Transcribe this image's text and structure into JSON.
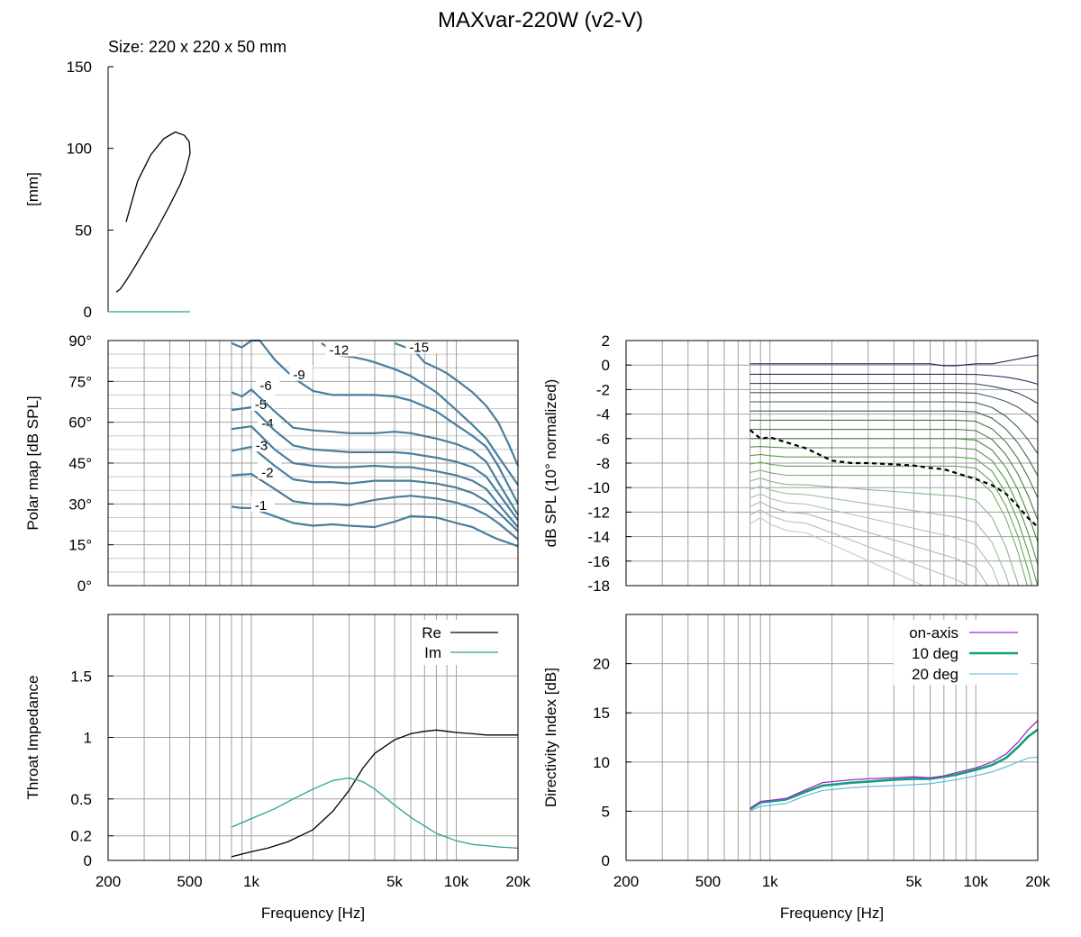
{
  "title": "MAXvar-220W (v2-V)",
  "chart_data": [
    {
      "id": "profile",
      "type": "line",
      "title": "Size: 220 x 220 x 50 mm",
      "xlabel": "",
      "ylabel": "[mm]",
      "xlim": [
        0,
        220
      ],
      "ylim": [
        0,
        150
      ],
      "yticks": [
        0,
        50,
        100,
        150
      ],
      "colors": {
        "profile": "#000000",
        "baseline": "#2aa198"
      },
      "series": [
        {
          "name": "profile",
          "x": [
            10,
            15,
            22,
            32,
            45,
            60,
            75,
            88,
            95,
            100,
            99,
            93,
            82,
            68,
            52,
            36,
            22
          ],
          "y": [
            12,
            14,
            19,
            27,
            38,
            51,
            65,
            78,
            87,
            97,
            104,
            108,
            110,
            106,
            96,
            80,
            55
          ]
        },
        {
          "name": "baseline",
          "x": [
            0,
            100
          ],
          "y": [
            0,
            0
          ]
        }
      ]
    },
    {
      "id": "polar-map",
      "type": "line",
      "title": "",
      "xlabel": "",
      "ylabel": "Polar map [dB SPL]",
      "xscale": "log",
      "xlim": [
        200,
        20000
      ],
      "ylim": [
        0,
        90
      ],
      "yticks": [
        0,
        15,
        30,
        45,
        60,
        75,
        90
      ],
      "ytick_labels": [
        "0°",
        "15°",
        "30°",
        "45°",
        "60°",
        "75°",
        "90°"
      ],
      "color": "#4a7d9c",
      "series": [
        {
          "name": "-1",
          "label_x": 1040,
          "label_y": 29.5,
          "x": [
            800,
            900,
            1000,
            1300,
            1600,
            2000,
            2500,
            3000,
            4000,
            5000,
            6000,
            8000,
            10000,
            12000,
            14000,
            16000,
            20000
          ],
          "y": [
            29,
            28.5,
            28.5,
            25.5,
            23,
            22,
            22.5,
            22,
            21.5,
            23.5,
            25.5,
            25,
            23,
            21.5,
            19,
            17,
            14.5
          ]
        },
        {
          "name": "-2",
          "label_x": 1120,
          "label_y": 41.5,
          "x": [
            800,
            1000,
            1300,
            1600,
            2000,
            2500,
            3000,
            4000,
            5000,
            6000,
            8000,
            10000,
            12000,
            14000,
            16000,
            20000
          ],
          "y": [
            40.5,
            41,
            35.5,
            31,
            30,
            30,
            29.5,
            31.5,
            32.5,
            33,
            32,
            30.5,
            28.5,
            26,
            23,
            17
          ]
        },
        {
          "name": "-3",
          "label_x": 1050,
          "label_y": 51.5,
          "x": [
            800,
            1000,
            1300,
            1600,
            2000,
            2500,
            3000,
            4000,
            5000,
            6000,
            8000,
            10000,
            12000,
            14000,
            16000,
            20000
          ],
          "y": [
            49.5,
            51,
            44,
            39,
            38,
            38,
            37.5,
            38.5,
            38.5,
            38.5,
            37.5,
            36,
            34,
            31,
            27,
            20
          ]
        },
        {
          "name": "-4",
          "label_x": 1120,
          "label_y": 59.5,
          "x": [
            800,
            1000,
            1300,
            1600,
            2000,
            2500,
            3000,
            4000,
            5000,
            6000,
            8000,
            10000,
            12000,
            14000,
            16000,
            20000
          ],
          "y": [
            57.5,
            58.5,
            50,
            45,
            44,
            43.5,
            43.5,
            44,
            43.5,
            43.5,
            42,
            40.5,
            38.5,
            35.5,
            30,
            21.5
          ]
        },
        {
          "name": "-5",
          "label_x": 1040,
          "label_y": 66.5,
          "x": [
            800,
            1000,
            1300,
            1600,
            2000,
            2500,
            3000,
            4000,
            5000,
            6000,
            8000,
            10000,
            12000,
            14000,
            16000,
            20000
          ],
          "y": [
            64.5,
            65.5,
            57,
            51.5,
            50,
            49.5,
            49,
            49,
            49,
            48.5,
            47,
            45.5,
            43.5,
            40,
            34,
            24
          ]
        },
        {
          "name": "-6",
          "label_x": 1100,
          "label_y": 73.5,
          "x": [
            800,
            900,
            1000,
            1300,
            1600,
            2000,
            2500,
            3000,
            4000,
            5000,
            6000,
            8000,
            10000,
            12000,
            14000,
            16000,
            20000
          ],
          "y": [
            71,
            69.5,
            72,
            64,
            58,
            57,
            56.5,
            56,
            56,
            56.5,
            56,
            54,
            52,
            49.5,
            45.5,
            38,
            26
          ]
        },
        {
          "name": "-9",
          "label_x": 1600,
          "label_y": 77.5,
          "x": [
            800,
            900,
            1000,
            1100,
            1300,
            1500,
            1700,
            2000,
            2500,
            3000,
            4000,
            5000,
            6000,
            8000,
            10000,
            12000,
            14000,
            16000,
            20000
          ],
          "y": [
            89,
            87.5,
            90,
            90,
            83,
            78.5,
            75,
            71.5,
            70,
            70,
            70,
            69.5,
            68,
            64,
            59,
            55,
            51,
            44,
            30
          ]
        },
        {
          "name": "-12",
          "label_x": 2400,
          "label_y": 86.5,
          "x": [
            2200,
            2700,
            3100,
            3600,
            4000,
            5000,
            6000,
            8000,
            10000,
            12000,
            14000,
            16000,
            18000,
            20000
          ],
          "y": [
            89,
            84.5,
            84,
            83,
            82,
            79.5,
            77,
            71,
            64.5,
            59,
            54,
            47.5,
            42,
            37
          ]
        },
        {
          "name": "-15",
          "label_x": 5900,
          "label_y": 87.5,
          "x": [
            5000,
            6200,
            7000,
            8000,
            9000,
            10000,
            12000,
            14000,
            16000,
            18000,
            20000
          ],
          "y": [
            89,
            86.5,
            82,
            80,
            78,
            75.5,
            71,
            66,
            60,
            52,
            44
          ]
        }
      ]
    },
    {
      "id": "normalized-spl",
      "type": "line",
      "title": "",
      "xlabel": "",
      "ylabel": "dB SPL (10° normalized)",
      "xscale": "log",
      "xlim": [
        200,
        20000
      ],
      "ylim": [
        -18,
        2
      ],
      "yticks": [
        -18,
        -16,
        -14,
        -12,
        -10,
        -8,
        -6,
        -4,
        -2,
        0,
        2
      ],
      "n_curves": 19,
      "reference_curve": {
        "style": "dashed",
        "color": "#000000",
        "x": [
          800,
          900,
          1000,
          1200,
          1500,
          2000,
          2500,
          3000,
          4000,
          5000,
          6000,
          7000,
          8000,
          10000,
          12000,
          14000,
          16000,
          18000,
          20000
        ],
        "y": [
          -5.3,
          -6,
          -5.9,
          -6.3,
          -6.8,
          -7.8,
          -8,
          -8,
          -8.1,
          -8.2,
          -8.4,
          -8.5,
          -8.8,
          -9.3,
          -9.8,
          -10.5,
          -11.5,
          -12.5,
          -13.2
        ]
      },
      "curve_colors": [
        "#241a4a",
        "#2e2f5c",
        "#38466c",
        "#3f5a6c",
        "#415f5c",
        "#3f6b48",
        "#3f7a44",
        "#447f3e",
        "#4a8a3d",
        "#539444",
        "#5d9d4d",
        "#68a55a",
        "#78af6b",
        "#8ab98a",
        "#9abf9e",
        "#a6c6aa",
        "#b4b4b4",
        "#bdbdbd",
        "#c8c8c8"
      ]
    },
    {
      "id": "throat-impedance",
      "type": "line",
      "title": "",
      "xlabel": "Frequency [Hz]",
      "ylabel": "Throat Impedance",
      "xscale": "log",
      "xlim": [
        200,
        20000
      ],
      "ylim": [
        0,
        2
      ],
      "yticks": [
        0,
        0.2,
        0.5,
        1,
        1.5
      ],
      "legend": "top-right",
      "series": [
        {
          "name": "Re",
          "color": "#000000",
          "x": [
            800,
            1000,
            1200,
            1500,
            2000,
            2500,
            3000,
            3500,
            4000,
            5000,
            6000,
            7000,
            8000,
            9000,
            10000,
            12000,
            14000,
            16000,
            20000
          ],
          "y": [
            0.03,
            0.07,
            0.1,
            0.15,
            0.25,
            0.4,
            0.57,
            0.75,
            0.87,
            0.98,
            1.03,
            1.05,
            1.06,
            1.05,
            1.04,
            1.03,
            1.02,
            1.02,
            1.02
          ]
        },
        {
          "name": "Im",
          "color": "#2aa198",
          "x": [
            800,
            1000,
            1300,
            1600,
            2000,
            2500,
            3000,
            3500,
            4000,
            5000,
            6000,
            7000,
            8000,
            10000,
            12000,
            14000,
            16000,
            20000
          ],
          "y": [
            0.27,
            0.34,
            0.42,
            0.5,
            0.58,
            0.65,
            0.67,
            0.64,
            0.58,
            0.45,
            0.35,
            0.28,
            0.22,
            0.16,
            0.13,
            0.12,
            0.11,
            0.1
          ]
        }
      ]
    },
    {
      "id": "directivity-index",
      "type": "line",
      "title": "",
      "xlabel": "Frequency [Hz]",
      "ylabel": "Directivity Index [dB]",
      "xscale": "log",
      "xlim": [
        200,
        20000
      ],
      "ylim": [
        0,
        25
      ],
      "yticks": [
        0,
        5,
        10,
        15,
        20
      ],
      "legend": "top-right",
      "series": [
        {
          "name": "on-axis",
          "color": "#9a2cc8",
          "x": [
            800,
            900,
            1000,
            1200,
            1500,
            1800,
            2000,
            2500,
            3000,
            4000,
            5000,
            6000,
            7000,
            8000,
            10000,
            12000,
            14000,
            16000,
            18000,
            20000
          ],
          "y": [
            5.3,
            6.0,
            6.1,
            6.3,
            7.2,
            7.9,
            8.0,
            8.2,
            8.3,
            8.4,
            8.5,
            8.4,
            8.6,
            8.9,
            9.4,
            10.0,
            10.8,
            12.0,
            13.3,
            14.2
          ]
        },
        {
          "name": "10 deg",
          "color": "#139e7c",
          "x": [
            800,
            900,
            1000,
            1200,
            1500,
            1800,
            2000,
            2500,
            3000,
            4000,
            5000,
            6000,
            7000,
            8000,
            10000,
            12000,
            14000,
            16000,
            18000,
            20000
          ],
          "y": [
            5.2,
            5.9,
            6.0,
            6.2,
            7.0,
            7.6,
            7.7,
            7.9,
            8.0,
            8.2,
            8.3,
            8.3,
            8.5,
            8.7,
            9.2,
            9.7,
            10.4,
            11.5,
            12.6,
            13.3
          ]
        },
        {
          "name": "20 deg",
          "color": "#5ab4dc",
          "x": [
            800,
            900,
            1000,
            1200,
            1500,
            1800,
            2000,
            2500,
            3000,
            4000,
            5000,
            6000,
            7000,
            8000,
            10000,
            12000,
            14000,
            16000,
            18000,
            20000
          ],
          "y": [
            5.0,
            5.5,
            5.6,
            5.8,
            6.6,
            7.1,
            7.2,
            7.4,
            7.5,
            7.6,
            7.7,
            7.8,
            8.0,
            8.2,
            8.6,
            9.0,
            9.5,
            10.0,
            10.4,
            10.5
          ]
        }
      ]
    }
  ],
  "freq_ticks": [
    {
      "v": 200,
      "label": "200"
    },
    {
      "v": 500,
      "label": "500"
    },
    {
      "v": 1000,
      "label": "1k"
    },
    {
      "v": 5000,
      "label": "5k"
    },
    {
      "v": 10000,
      "label": "10k"
    },
    {
      "v": 20000,
      "label": "20k"
    }
  ]
}
